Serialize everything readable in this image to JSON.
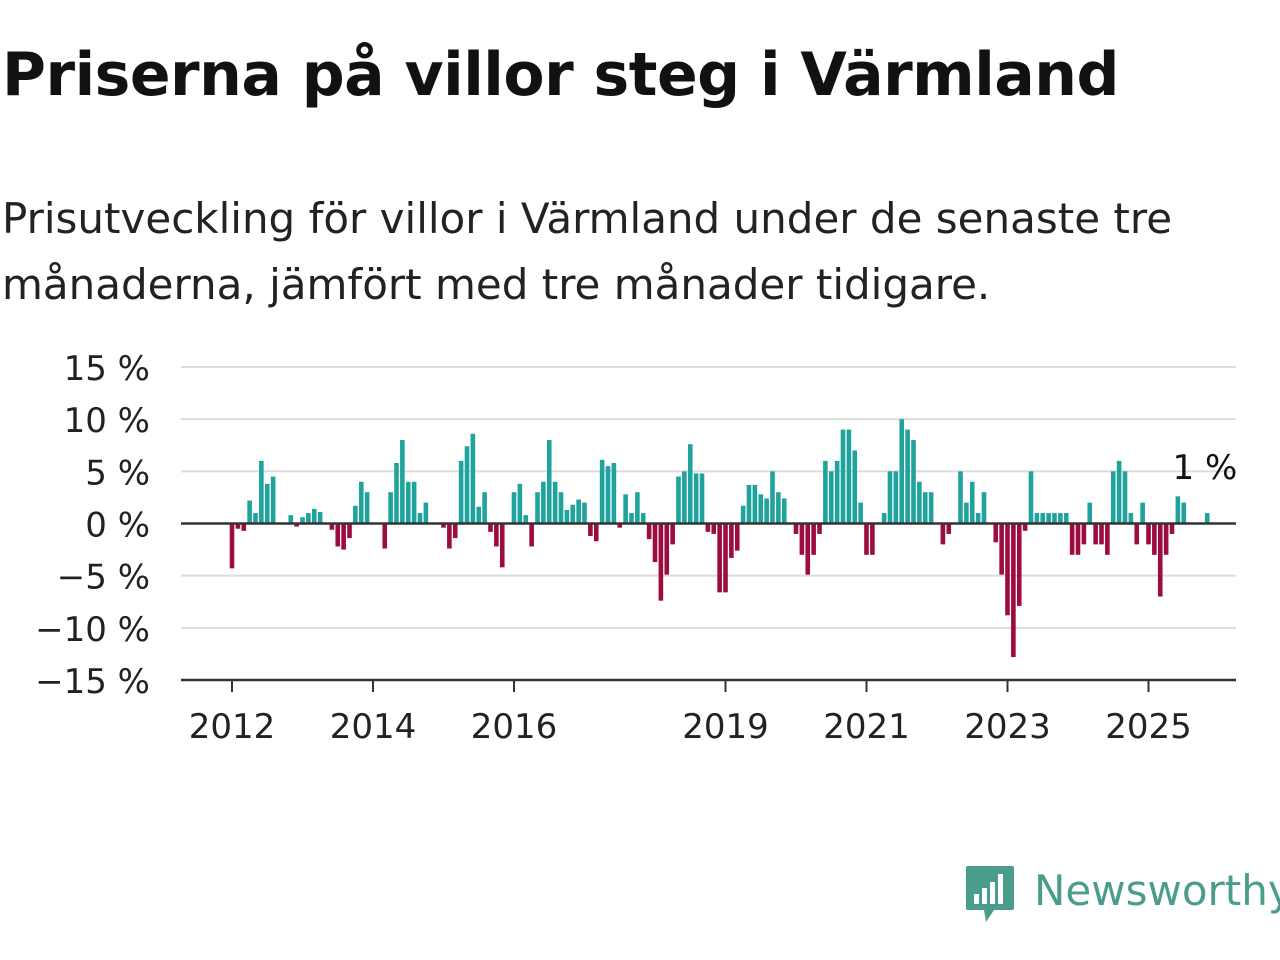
{
  "title": "Priserna på villor steg i Värmland",
  "subtitle": "Prisutveckling för villor i Värmland under de senaste tre månaderna, jämfört med tre månader tidigare.",
  "brand": {
    "name": "Newsworthy",
    "logo_icon": "newsworthy-bar-chart-logo-icon",
    "color": "#4a9c8c"
  },
  "chart_data": {
    "type": "bar",
    "title": "",
    "xlabel": "",
    "ylabel": "",
    "ylim": [
      -15,
      15
    ],
    "yticks": [
      {
        "value": 15,
        "label": "15 %"
      },
      {
        "value": 10,
        "label": "10 %"
      },
      {
        "value": 5,
        "label": "5 %"
      },
      {
        "value": 0,
        "label": "0 %"
      },
      {
        "value": -5,
        "label": "−5 %"
      },
      {
        "value": -10,
        "label": "−10 %"
      },
      {
        "value": -15,
        "label": "−15 %"
      }
    ],
    "xticks": [
      {
        "date": "2012-01",
        "label": "2012"
      },
      {
        "date": "2014-01",
        "label": "2014"
      },
      {
        "date": "2016-01",
        "label": "2016"
      },
      {
        "date": "2019-01",
        "label": "2019"
      },
      {
        "date": "2021-01",
        "label": "2021"
      },
      {
        "date": "2023-01",
        "label": "2023"
      },
      {
        "date": "2025-01",
        "label": "2025"
      }
    ],
    "grid": true,
    "colors": {
      "positive": "#1fa39c",
      "negative": "#9c0c40"
    },
    "last_value_label": "1 %",
    "start_month": "2012-01",
    "values": [
      -4.3,
      -0.5,
      -0.7,
      2.2,
      1.0,
      6.0,
      3.8,
      4.5,
      0,
      0,
      0.8,
      -0.3,
      0.6,
      1.0,
      1.4,
      1.1,
      0,
      -0.6,
      -2.2,
      -2.5,
      -1.4,
      1.7,
      4.0,
      3.0,
      0,
      0,
      -2.4,
      3.0,
      5.8,
      8.0,
      4.0,
      4.0,
      1.0,
      2.0,
      0,
      0,
      -0.4,
      -2.4,
      -1.4,
      6.0,
      7.4,
      8.6,
      1.6,
      3.0,
      -0.8,
      -2.2,
      -4.2,
      0,
      3.0,
      3.8,
      0.8,
      -2.2,
      3.0,
      4.0,
      8.0,
      4.0,
      3.0,
      1.3,
      1.8,
      2.3,
      2.0,
      -1.2,
      -1.7,
      6.1,
      5.5,
      5.8,
      -0.4,
      2.8,
      1.0,
      3.0,
      1.0,
      -1.5,
      -3.7,
      -7.4,
      -4.9,
      -2.0,
      4.5,
      5.0,
      7.6,
      4.8,
      4.8,
      -0.8,
      -1.0,
      -6.6,
      -6.6,
      -3.3,
      -2.6,
      1.7,
      3.7,
      3.7,
      2.8,
      2.4,
      5.0,
      3.0,
      2.4,
      0,
      -1.0,
      -3.0,
      -4.9,
      -3.0,
      -1.0,
      6.0,
      5.0,
      6.0,
      9.0,
      9.0,
      7.0,
      2.0,
      -3.0,
      -3.0,
      0,
      1.0,
      5.0,
      5.0,
      10.0,
      9.0,
      8.0,
      4.0,
      3.0,
      3.0,
      0,
      -2.0,
      -1.0,
      0,
      5.0,
      2.0,
      4.0,
      1.0,
      3.0,
      0,
      -1.8,
      -4.9,
      -8.8,
      -12.8,
      -7.9,
      -0.7,
      5.0,
      1.0,
      1.0,
      1.0,
      1.0,
      1.0,
      1.0,
      -3.0,
      -3.0,
      -2.0,
      2.0,
      -2.0,
      -2.0,
      -3.0,
      5.0,
      6.0,
      5.0,
      1.0,
      -2.0,
      2.0,
      -2.0,
      -3.0,
      -7.0,
      -3.0,
      -1.0,
      2.6,
      2.0,
      0,
      0,
      0,
      1.0
    ]
  }
}
